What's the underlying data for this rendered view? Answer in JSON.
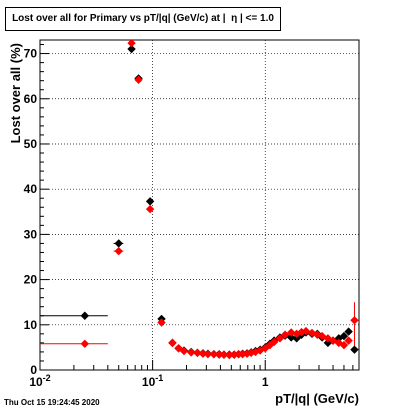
{
  "title": "Lost over all for Primary vs pT/|q| (GeV/c) at |  η | <= 1.0",
  "timestamp": "Thu Oct 15 19:24:45 2020",
  "chart_data": {
    "type": "scatter",
    "xlabel": "pT/|q| (GeV/c)",
    "ylabel": "Lost over all (%)",
    "xscale": "log",
    "xlim": [
      0.01,
      6.8
    ],
    "ylim": [
      0,
      73
    ],
    "grid": true,
    "x_tick_labels": [
      "10^-2",
      "10^-1",
      "1"
    ],
    "y_ticks": [
      0,
      10,
      20,
      30,
      40,
      50,
      60,
      70
    ],
    "colors": {
      "black_series": "#000000",
      "red_series": "#ff0000"
    },
    "series": [
      {
        "color": "#000000",
        "points": [
          [
            0.025,
            12.0,
            0.015
          ],
          [
            0.05,
            28.0,
            0.005
          ],
          [
            0.065,
            71.0,
            0.003
          ],
          [
            0.075,
            64.5,
            0.003
          ],
          [
            0.095,
            37.3,
            0.005
          ],
          [
            0.12,
            11.3,
            0.007
          ],
          [
            0.15,
            6.0,
            0.005
          ],
          [
            0.17,
            4.8,
            0.005
          ],
          [
            0.19,
            4.3,
            0.005
          ],
          [
            0.22,
            4.0,
            0.005
          ],
          [
            0.25,
            3.8,
            0.007
          ],
          [
            0.28,
            3.7,
            0.007
          ],
          [
            0.31,
            3.6,
            0.008
          ],
          [
            0.35,
            3.5,
            0.01
          ],
          [
            0.39,
            3.5,
            0.01
          ],
          [
            0.43,
            3.4,
            0.01
          ],
          [
            0.48,
            3.4,
            0.012
          ],
          [
            0.53,
            3.4,
            0.013
          ],
          [
            0.58,
            3.5,
            0.013
          ],
          [
            0.63,
            3.6,
            0.015
          ],
          [
            0.69,
            3.7,
            0.015
          ],
          [
            0.75,
            3.9,
            0.02
          ],
          [
            0.82,
            4.2,
            0.02
          ],
          [
            0.9,
            4.5,
            0.02
          ],
          [
            1.0,
            5.0,
            0.025
          ],
          [
            1.1,
            5.8,
            0.03
          ],
          [
            1.2,
            6.5,
            0.03
          ],
          [
            1.35,
            7.2,
            0.04
          ],
          [
            1.5,
            7.6,
            0.05
          ],
          [
            1.7,
            7.2,
            0.06
          ],
          [
            1.9,
            7.0,
            0.07
          ],
          [
            2.1,
            7.8,
            0.08
          ],
          [
            2.3,
            8.3,
            0.08
          ],
          [
            2.6,
            8.0,
            0.1
          ],
          [
            2.9,
            8.0,
            0.1
          ],
          [
            3.2,
            7.2,
            0.12
          ],
          [
            3.6,
            6.0,
            0.15
          ],
          [
            4.0,
            6.5,
            0.2
          ],
          [
            4.5,
            7.0,
            0.2
          ],
          [
            5.0,
            7.5,
            0.25
          ],
          [
            5.5,
            8.5,
            0.25
          ],
          [
            6.2,
            4.5,
            0.3
          ]
        ]
      },
      {
        "color": "#ff0000",
        "points": [
          [
            0.025,
            5.8,
            0.015
          ],
          [
            0.05,
            26.3,
            0.005
          ],
          [
            0.065,
            72.3,
            0.003
          ],
          [
            0.075,
            64.2,
            0.003
          ],
          [
            0.095,
            35.6,
            0.005
          ],
          [
            0.12,
            10.5,
            0.007
          ],
          [
            0.15,
            6.0,
            0.005
          ],
          [
            0.17,
            4.8,
            0.005
          ],
          [
            0.19,
            4.2,
            0.005
          ],
          [
            0.22,
            3.9,
            0.005
          ],
          [
            0.25,
            3.8,
            0.007
          ],
          [
            0.28,
            3.6,
            0.007
          ],
          [
            0.31,
            3.5,
            0.008
          ],
          [
            0.35,
            3.5,
            0.01
          ],
          [
            0.39,
            3.4,
            0.01
          ],
          [
            0.43,
            3.4,
            0.01
          ],
          [
            0.48,
            3.3,
            0.012
          ],
          [
            0.53,
            3.4,
            0.013
          ],
          [
            0.58,
            3.5,
            0.013
          ],
          [
            0.63,
            3.5,
            0.015
          ],
          [
            0.69,
            3.6,
            0.015
          ],
          [
            0.75,
            3.8,
            0.02
          ],
          [
            0.82,
            4.0,
            0.02
          ],
          [
            0.9,
            4.3,
            0.02
          ],
          [
            1.0,
            4.8,
            0.025
          ],
          [
            1.1,
            5.5,
            0.03
          ],
          [
            1.2,
            6.2,
            0.03
          ],
          [
            1.35,
            7.0,
            0.04
          ],
          [
            1.5,
            7.8,
            0.05
          ],
          [
            1.7,
            8.3,
            0.06
          ],
          [
            1.9,
            8.0,
            0.07
          ],
          [
            2.1,
            8.4,
            0.08
          ],
          [
            2.3,
            8.6,
            0.08
          ],
          [
            2.6,
            8.2,
            0.1
          ],
          [
            2.9,
            7.8,
            0.1
          ],
          [
            3.2,
            7.5,
            0.12
          ],
          [
            3.6,
            7.0,
            0.15
          ],
          [
            4.0,
            6.5,
            0.2
          ],
          [
            4.5,
            6.0,
            0.2
          ],
          [
            5.0,
            5.5,
            0.25
          ],
          [
            5.5,
            6.5,
            0.25
          ],
          [
            6.2,
            11.0,
            0.3
          ]
        ]
      }
    ]
  }
}
